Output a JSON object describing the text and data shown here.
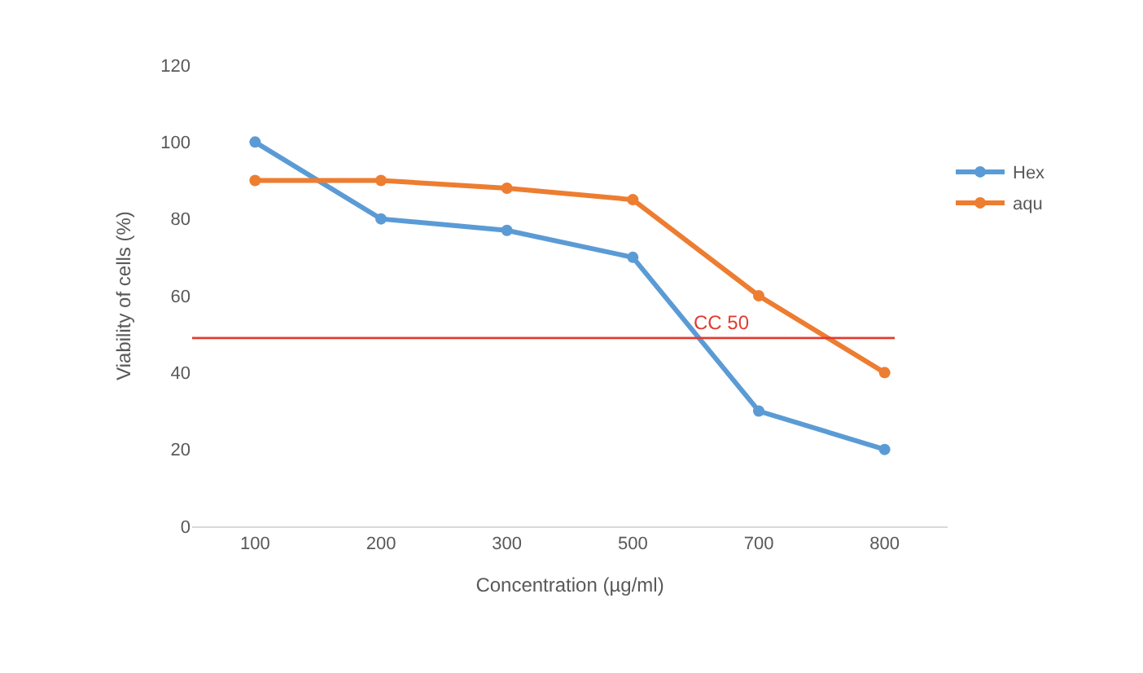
{
  "chart_data": {
    "type": "line",
    "xlabel": "Concentration (µg/ml)",
    "ylabel": "Viability of cells (%)",
    "categories": [
      "100",
      "200",
      "300",
      "500",
      "700",
      "800"
    ],
    "series": [
      {
        "name": "Hex",
        "color": "#5b9bd5",
        "values": [
          100,
          80,
          77,
          70,
          30,
          20
        ]
      },
      {
        "name": "aqu",
        "color": "#ed7d31",
        "values": [
          90,
          90,
          88,
          85,
          60,
          40
        ]
      }
    ],
    "ylim": [
      0,
      120
    ],
    "yticks": [
      0,
      20,
      40,
      60,
      80,
      100,
      120
    ],
    "grid": false,
    "legend": "right",
    "marker": "circle",
    "line_style": "solid",
    "ref_lines": [
      {
        "axis": "y",
        "value": 49,
        "label": "CC 50",
        "color": "#e03c31"
      }
    ]
  }
}
